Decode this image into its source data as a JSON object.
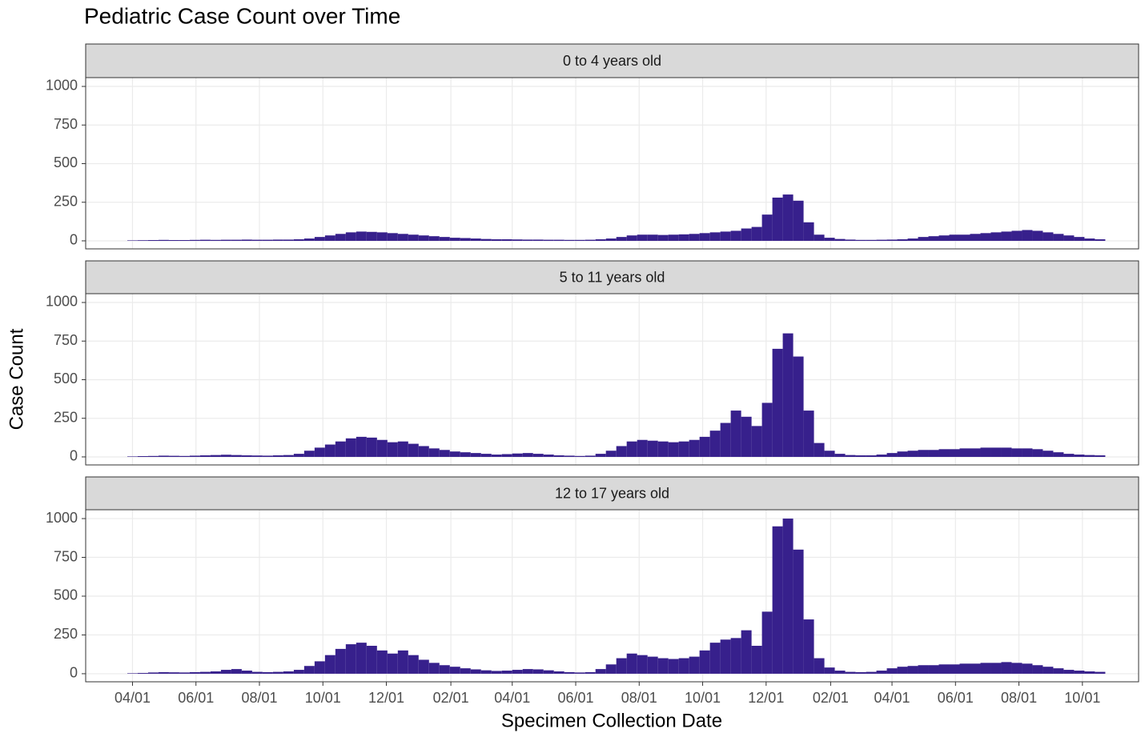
{
  "chart_data": {
    "type": "bar",
    "title": "Pediatric Case Count over Time",
    "xlabel": "Specimen Collection Date",
    "ylabel": "Case Count",
    "color": "#37208c",
    "grid": true,
    "xlim": [
      -45,
      967
    ],
    "ylim": [
      -52,
      1057
    ],
    "yticks": [
      0,
      250,
      500,
      750,
      1000
    ],
    "xticks": [
      {
        "value": 0,
        "label": "04/01"
      },
      {
        "value": 61,
        "label": "06/01"
      },
      {
        "value": 122,
        "label": "08/01"
      },
      {
        "value": 183,
        "label": "10/01"
      },
      {
        "value": 244,
        "label": "12/01"
      },
      {
        "value": 306,
        "label": "02/01"
      },
      {
        "value": 365,
        "label": "04/01"
      },
      {
        "value": 426,
        "label": "06/01"
      },
      {
        "value": 487,
        "label": "08/01"
      },
      {
        "value": 548,
        "label": "10/01"
      },
      {
        "value": 609,
        "label": "12/01"
      },
      {
        "value": 671,
        "label": "02/01"
      },
      {
        "value": 730,
        "label": "04/01"
      },
      {
        "value": 791,
        "label": "06/01"
      },
      {
        "value": 852,
        "label": "08/01"
      },
      {
        "value": 913,
        "label": "10/01"
      }
    ],
    "x": [
      0,
      10,
      20,
      30,
      40,
      50,
      60,
      70,
      80,
      90,
      100,
      110,
      120,
      130,
      140,
      150,
      160,
      170,
      180,
      190,
      200,
      210,
      220,
      230,
      240,
      250,
      260,
      270,
      280,
      290,
      300,
      310,
      320,
      330,
      340,
      350,
      360,
      370,
      380,
      390,
      400,
      410,
      420,
      430,
      440,
      450,
      460,
      470,
      480,
      490,
      500,
      510,
      520,
      530,
      540,
      550,
      560,
      570,
      580,
      590,
      600,
      610,
      620,
      630,
      640,
      650,
      660,
      670,
      680,
      690,
      700,
      710,
      720,
      730,
      740,
      750,
      760,
      770,
      780,
      790,
      800,
      810,
      820,
      830,
      840,
      850,
      860,
      870,
      880,
      890,
      900,
      910,
      920,
      930
    ],
    "series": [
      {
        "name": "0 to 4 years old",
        "values": [
          3,
          4,
          5,
          6,
          5,
          5,
          6,
          7,
          6,
          7,
          7,
          8,
          7,
          7,
          8,
          8,
          10,
          15,
          25,
          35,
          45,
          55,
          60,
          58,
          55,
          50,
          45,
          40,
          35,
          30,
          25,
          20,
          18,
          15,
          12,
          10,
          10,
          9,
          8,
          8,
          7,
          7,
          6,
          6,
          7,
          10,
          15,
          25,
          35,
          40,
          40,
          38,
          40,
          42,
          45,
          50,
          55,
          60,
          65,
          80,
          90,
          170,
          280,
          300,
          260,
          120,
          40,
          20,
          12,
          8,
          6,
          6,
          7,
          8,
          10,
          15,
          25,
          30,
          35,
          40,
          40,
          45,
          50,
          55,
          60,
          65,
          70,
          65,
          55,
          45,
          35,
          25,
          15,
          10
        ]
      },
      {
        "name": "5 to 11 years old",
        "values": [
          3,
          5,
          6,
          8,
          7,
          6,
          8,
          10,
          12,
          14,
          12,
          10,
          9,
          8,
          10,
          12,
          20,
          40,
          60,
          80,
          100,
          120,
          130,
          125,
          110,
          95,
          100,
          85,
          70,
          55,
          45,
          35,
          30,
          25,
          20,
          15,
          18,
          22,
          25,
          20,
          15,
          10,
          8,
          6,
          8,
          20,
          40,
          70,
          100,
          110,
          105,
          100,
          95,
          100,
          110,
          130,
          170,
          220,
          300,
          260,
          200,
          350,
          700,
          800,
          650,
          300,
          90,
          40,
          20,
          12,
          10,
          10,
          15,
          25,
          35,
          40,
          45,
          45,
          50,
          50,
          55,
          55,
          60,
          60,
          60,
          55,
          55,
          50,
          40,
          30,
          20,
          15,
          12,
          10
        ]
      },
      {
        "name": "12 to 17 years old",
        "values": [
          3,
          5,
          8,
          10,
          9,
          8,
          10,
          12,
          15,
          25,
          30,
          20,
          12,
          10,
          12,
          15,
          25,
          50,
          80,
          120,
          160,
          190,
          200,
          180,
          150,
          130,
          150,
          120,
          90,
          70,
          55,
          45,
          35,
          28,
          22,
          18,
          20,
          25,
          30,
          28,
          22,
          15,
          10,
          8,
          10,
          30,
          60,
          100,
          130,
          120,
          110,
          100,
          95,
          100,
          110,
          150,
          200,
          220,
          230,
          280,
          180,
          400,
          950,
          1000,
          800,
          350,
          100,
          40,
          20,
          12,
          10,
          12,
          20,
          35,
          45,
          50,
          55,
          55,
          60,
          60,
          65,
          65,
          70,
          70,
          75,
          70,
          65,
          55,
          45,
          35,
          25,
          20,
          15,
          12
        ]
      }
    ]
  }
}
